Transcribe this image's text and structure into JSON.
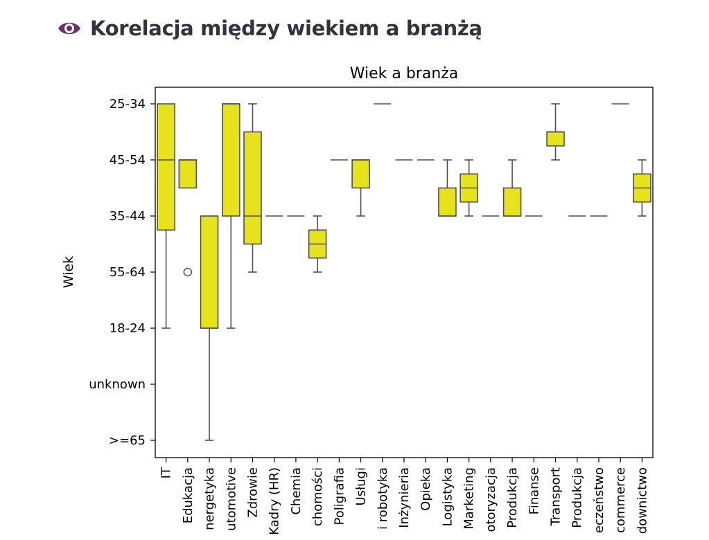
{
  "header": {
    "icon": "eye-icon",
    "title": "Korelacja między wiekiem a branżą"
  },
  "colors": {
    "box_fill": "#e6e21c",
    "box_edge": "#4f4f4f",
    "header_icon": "#6b2f6b"
  },
  "chart_data": {
    "type": "boxplot",
    "title": "Wiek a branża",
    "xlabel": "",
    "ylabel": "Wiek",
    "y_categories": [
      "25-34",
      "45-54",
      "35-44",
      "55-64",
      "18-24",
      "unknown",
      ">=65"
    ],
    "categories": [
      "IT",
      "Edukacja",
      "nergetyka",
      "utomotive",
      "Zdrowie",
      "Kadry (HR)",
      "Chemia",
      "chomości",
      "Poligrafia",
      "Usługi",
      "i robotyka",
      "Inżynieria",
      "Opieka",
      "Logistyka",
      "Marketing",
      "otoryzacja",
      "Produkcja",
      "Finanse",
      "Transport",
      "Produkcja",
      "eczeństwo",
      "commerce",
      "downictwo"
    ],
    "boxes": [
      {
        "category": "IT",
        "whisker_low": 0,
        "q1": 0,
        "median": 1,
        "q3": 2.25,
        "whisker_high": 4,
        "outliers": []
      },
      {
        "category": "Edukacja",
        "whisker_low": 1,
        "q1": 1,
        "median": 1,
        "q3": 1.5,
        "whisker_high": 1.5,
        "outliers": [
          3
        ]
      },
      {
        "category": "nergetyka",
        "whisker_low": 2,
        "q1": 2,
        "median": 4,
        "q3": 4,
        "whisker_high": 6,
        "outliers": []
      },
      {
        "category": "utomotive",
        "whisker_low": 0,
        "q1": 0,
        "median": 0,
        "q3": 2,
        "whisker_high": 4,
        "outliers": []
      },
      {
        "category": "Zdrowie",
        "whisker_low": 0,
        "q1": 0.5,
        "median": 2,
        "q3": 2.5,
        "whisker_high": 3,
        "outliers": []
      },
      {
        "category": "Kadry (HR)",
        "whisker_low": 2,
        "q1": 2,
        "median": 2,
        "q3": 2,
        "whisker_high": 2,
        "outliers": []
      },
      {
        "category": "Chemia",
        "whisker_low": 2,
        "q1": 2,
        "median": 2,
        "q3": 2,
        "whisker_high": 2,
        "outliers": []
      },
      {
        "category": "chomości",
        "whisker_low": 2,
        "q1": 2.25,
        "median": 2.5,
        "q3": 2.75,
        "whisker_high": 3,
        "outliers": []
      },
      {
        "category": "Poligrafia",
        "whisker_low": 1,
        "q1": 1,
        "median": 1,
        "q3": 1,
        "whisker_high": 1,
        "outliers": []
      },
      {
        "category": "Usługi",
        "whisker_low": 1,
        "q1": 1,
        "median": 1,
        "q3": 1.5,
        "whisker_high": 2,
        "outliers": []
      },
      {
        "category": "i robotyka",
        "whisker_low": 0,
        "q1": 0,
        "median": 0,
        "q3": 0,
        "whisker_high": 0,
        "outliers": []
      },
      {
        "category": "Inżynieria",
        "whisker_low": 1,
        "q1": 1,
        "median": 1,
        "q3": 1,
        "whisker_high": 1,
        "outliers": []
      },
      {
        "category": "Opieka",
        "whisker_low": 1,
        "q1": 1,
        "median": 1,
        "q3": 1,
        "whisker_high": 1,
        "outliers": []
      },
      {
        "category": "Logistyka",
        "whisker_low": 1,
        "q1": 1.5,
        "median": 2,
        "q3": 2,
        "whisker_high": 2,
        "outliers": []
      },
      {
        "category": "Marketing",
        "whisker_low": 1,
        "q1": 1.25,
        "median": 1.5,
        "q3": 1.75,
        "whisker_high": 2,
        "outliers": []
      },
      {
        "category": "otoryzacja",
        "whisker_low": 2,
        "q1": 2,
        "median": 2,
        "q3": 2,
        "whisker_high": 2,
        "outliers": []
      },
      {
        "category": "Produkcja",
        "whisker_low": 1,
        "q1": 1.5,
        "median": 2,
        "q3": 2,
        "whisker_high": 2,
        "outliers": []
      },
      {
        "category": "Finanse",
        "whisker_low": 2,
        "q1": 2,
        "median": 2,
        "q3": 2,
        "whisker_high": 2,
        "outliers": []
      },
      {
        "category": "Transport",
        "whisker_low": 0,
        "q1": 0.5,
        "median": 0.5,
        "q3": 0.75,
        "whisker_high": 1,
        "outliers": []
      },
      {
        "category": "Produkcja",
        "whisker_low": 2,
        "q1": 2,
        "median": 2,
        "q3": 2,
        "whisker_high": 2,
        "outliers": []
      },
      {
        "category": "eczeństwo",
        "whisker_low": 2,
        "q1": 2,
        "median": 2,
        "q3": 2,
        "whisker_high": 2,
        "outliers": []
      },
      {
        "category": "commerce",
        "whisker_low": 0,
        "q1": 0,
        "median": 0,
        "q3": 0,
        "whisker_high": 0,
        "outliers": []
      },
      {
        "category": "downictwo",
        "whisker_low": 1,
        "q1": 1.25,
        "median": 1.5,
        "q3": 1.75,
        "whisker_high": 2,
        "outliers": []
      }
    ],
    "grid": false,
    "legend": "none"
  }
}
